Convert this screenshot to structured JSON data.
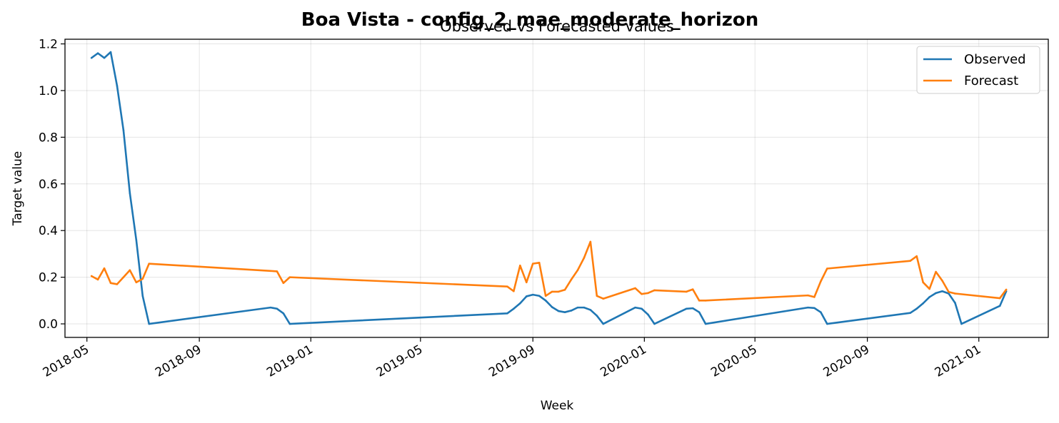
{
  "figure": {
    "suptitle": "Boa Vista - config_2_mae_moderate_horizon"
  },
  "chart_data": {
    "type": "line",
    "title": "Observed vs Forecasted values",
    "xlabel": "Week",
    "ylabel": "Target value",
    "x_scale": "date",
    "xlim": [
      "2018-04-07",
      "2021-03-18"
    ],
    "ylim": [
      -0.058,
      1.22
    ],
    "x_ticks": [
      "2018-05",
      "2018-09",
      "2019-01",
      "2019-05",
      "2019-09",
      "2020-01",
      "2020-05",
      "2020-09",
      "2021-01"
    ],
    "y_ticks": [
      "0.0",
      "0.2",
      "0.4",
      "0.6",
      "0.8",
      "1.0",
      "1.2"
    ],
    "grid": true,
    "legend_position": "top-right",
    "series": [
      {
        "name": "Observed",
        "color": "#1f77b4",
        "points": [
          [
            "2018-05-06",
            1.14
          ],
          [
            "2018-05-13",
            1.16
          ],
          [
            "2018-05-20",
            1.14
          ],
          [
            "2018-05-27",
            1.165
          ],
          [
            "2018-06-03",
            1.02
          ],
          [
            "2018-06-10",
            0.83
          ],
          [
            "2018-06-17",
            0.56
          ],
          [
            "2018-06-24",
            0.36
          ],
          [
            "2018-07-01",
            0.12
          ],
          [
            "2018-07-08",
            0.0
          ],
          [
            "2018-11-18",
            0.07
          ],
          [
            "2018-11-25",
            0.065
          ],
          [
            "2018-12-02",
            0.045
          ],
          [
            "2018-12-09",
            0.0
          ],
          [
            "2019-08-04",
            0.045
          ],
          [
            "2019-08-11",
            0.065
          ],
          [
            "2019-08-18",
            0.088
          ],
          [
            "2019-08-25",
            0.118
          ],
          [
            "2019-09-01",
            0.125
          ],
          [
            "2019-09-08",
            0.12
          ],
          [
            "2019-09-15",
            0.1
          ],
          [
            "2019-09-22",
            0.072
          ],
          [
            "2019-09-29",
            0.055
          ],
          [
            "2019-10-06",
            0.05
          ],
          [
            "2019-10-13",
            0.057
          ],
          [
            "2019-10-20",
            0.07
          ],
          [
            "2019-10-27",
            0.07
          ],
          [
            "2019-11-03",
            0.06
          ],
          [
            "2019-11-10",
            0.035
          ],
          [
            "2019-11-17",
            0.0
          ],
          [
            "2019-12-22",
            0.07
          ],
          [
            "2019-12-29",
            0.065
          ],
          [
            "2020-01-05",
            0.04
          ],
          [
            "2020-01-12",
            0.0
          ],
          [
            "2020-02-16",
            0.065
          ],
          [
            "2020-02-23",
            0.067
          ],
          [
            "2020-03-01",
            0.05
          ],
          [
            "2020-03-08",
            0.0
          ],
          [
            "2020-06-28",
            0.07
          ],
          [
            "2020-07-05",
            0.068
          ],
          [
            "2020-07-12",
            0.05
          ],
          [
            "2020-07-19",
            0.0
          ],
          [
            "2020-10-18",
            0.047
          ],
          [
            "2020-10-25",
            0.065
          ],
          [
            "2020-11-01",
            0.088
          ],
          [
            "2020-11-08",
            0.115
          ],
          [
            "2020-11-15",
            0.132
          ],
          [
            "2020-11-22",
            0.14
          ],
          [
            "2020-11-29",
            0.13
          ],
          [
            "2020-12-06",
            0.09
          ],
          [
            "2020-12-13",
            0.0
          ],
          [
            "2021-01-24",
            0.077
          ],
          [
            "2021-01-31",
            0.14
          ]
        ]
      },
      {
        "name": "Forecast",
        "color": "#ff7f0e",
        "points": [
          [
            "2018-05-06",
            0.205
          ],
          [
            "2018-05-13",
            0.19
          ],
          [
            "2018-05-20",
            0.238
          ],
          [
            "2018-05-27",
            0.175
          ],
          [
            "2018-06-03",
            0.17
          ],
          [
            "2018-06-10",
            0.2
          ],
          [
            "2018-06-17",
            0.23
          ],
          [
            "2018-06-24",
            0.178
          ],
          [
            "2018-07-01",
            0.193
          ],
          [
            "2018-07-08",
            0.258
          ],
          [
            "2018-11-18",
            0.227
          ],
          [
            "2018-11-25",
            0.225
          ],
          [
            "2018-12-02",
            0.175
          ],
          [
            "2018-12-09",
            0.2
          ],
          [
            "2019-08-04",
            0.16
          ],
          [
            "2019-08-11",
            0.14
          ],
          [
            "2019-08-18",
            0.25
          ],
          [
            "2019-08-25",
            0.178
          ],
          [
            "2019-09-01",
            0.258
          ],
          [
            "2019-09-08",
            0.262
          ],
          [
            "2019-09-15",
            0.12
          ],
          [
            "2019-09-22",
            0.138
          ],
          [
            "2019-09-29",
            0.138
          ],
          [
            "2019-10-06",
            0.146
          ],
          [
            "2019-10-13",
            0.19
          ],
          [
            "2019-10-20",
            0.23
          ],
          [
            "2019-10-27",
            0.283
          ],
          [
            "2019-11-03",
            0.352
          ],
          [
            "2019-11-10",
            0.12
          ],
          [
            "2019-11-17",
            0.108
          ],
          [
            "2019-12-22",
            0.153
          ],
          [
            "2019-12-29",
            0.128
          ],
          [
            "2020-01-05",
            0.132
          ],
          [
            "2020-01-12",
            0.144
          ],
          [
            "2020-02-16",
            0.138
          ],
          [
            "2020-02-23",
            0.148
          ],
          [
            "2020-03-01",
            0.1
          ],
          [
            "2020-03-08",
            0.1
          ],
          [
            "2020-06-28",
            0.122
          ],
          [
            "2020-07-05",
            0.115
          ],
          [
            "2020-07-12",
            0.182
          ],
          [
            "2020-07-19",
            0.237
          ],
          [
            "2020-10-18",
            0.27
          ],
          [
            "2020-10-25",
            0.29
          ],
          [
            "2020-11-01",
            0.178
          ],
          [
            "2020-11-08",
            0.15
          ],
          [
            "2020-11-15",
            0.223
          ],
          [
            "2020-11-22",
            0.185
          ],
          [
            "2020-11-29",
            0.137
          ],
          [
            "2020-12-06",
            0.13
          ],
          [
            "2021-01-24",
            0.11
          ],
          [
            "2021-01-31",
            0.147
          ]
        ]
      }
    ]
  }
}
